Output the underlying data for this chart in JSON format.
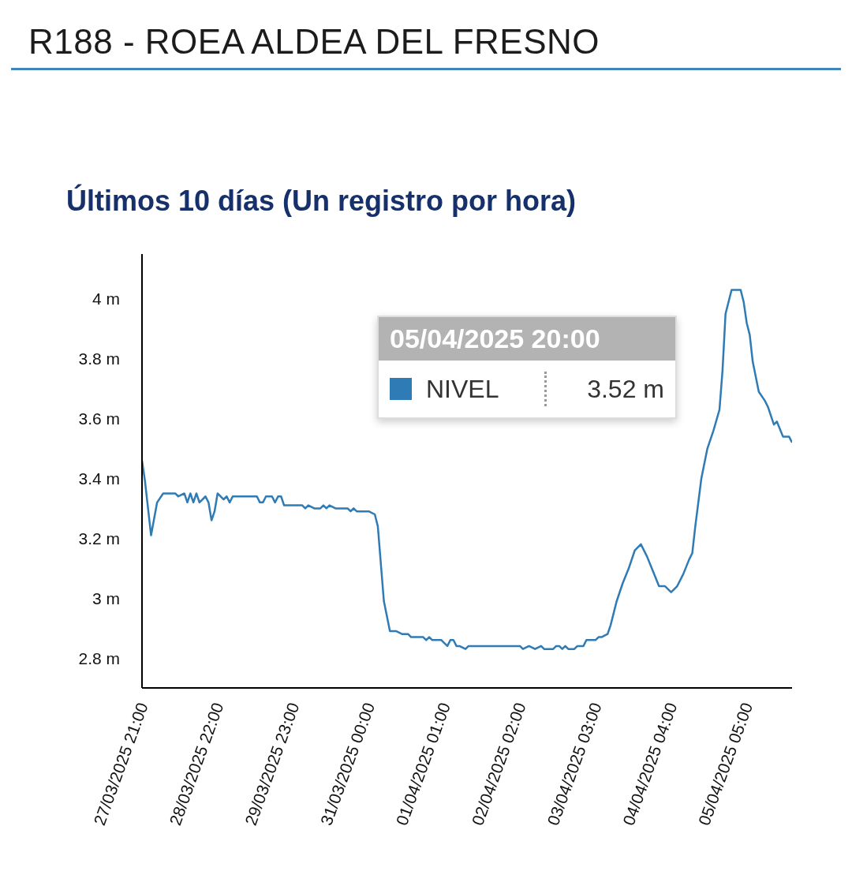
{
  "chart_data": {
    "type": "line",
    "title": "R188 - ROEA ALDEA DEL FRESNO",
    "subtitle": "Últimos 10 días (Un registro por hora)",
    "annotations": [
      "05/04/2025 20:00",
      "3.52 m"
    ],
    "legend": "top right",
    "marker": "none",
    "xlim": [
      "2025-03-27T21:00",
      "2025-04-05T20:00"
    ],
    "xticks": [
      {
        "value": "2025-03-27T21:00",
        "label": "27/03/2025 21:00"
      },
      {
        "value": "2025-03-28T22:00",
        "label": "28/03/2025 22:00"
      },
      {
        "value": "2025-03-29T23:00",
        "label": "29/03/2025 23:00"
      },
      {
        "value": "2025-03-31T00:00",
        "label": "31/03/2025 00:00"
      },
      {
        "value": "2025-04-01T01:00",
        "label": "01/04/2025 01:00"
      },
      {
        "value": "2025-04-02T02:00",
        "label": "02/04/2025 02:00"
      },
      {
        "value": "2025-04-03T03:00",
        "label": "03/04/2025 03:00"
      },
      {
        "value": "2025-04-04T04:00",
        "label": "04/04/2025 04:00"
      },
      {
        "value": "2025-04-05T05:00",
        "label": "05/04/2025 05:00"
      }
    ],
    "ylim": [
      2.7,
      4.15
    ],
    "yticks": [
      {
        "value": 2.8,
        "label": "2.8 m"
      },
      {
        "value": 3,
        "label": "3 m"
      },
      {
        "value": 3.2,
        "label": "3.2 m"
      },
      {
        "value": 3.4,
        "label": "3.4 m"
      },
      {
        "value": 3.6,
        "label": "3.6 m"
      },
      {
        "value": 3.8,
        "label": "3.8 m"
      },
      {
        "value": 4,
        "label": "4 m"
      }
    ],
    "x": [
      "2025-03-27T21:00",
      "2025-03-27T22:00",
      "2025-03-28T00:00",
      "2025-03-28T02:00",
      "2025-03-28T04:00",
      "2025-03-28T08:00",
      "2025-03-28T09:00",
      "2025-03-28T11:00",
      "2025-03-28T12:00",
      "2025-03-28T13:00",
      "2025-03-28T14:00",
      "2025-03-28T15:00",
      "2025-03-28T16:00",
      "2025-03-28T18:00",
      "2025-03-28T19:00",
      "2025-03-28T20:00",
      "2025-03-28T21:00",
      "2025-03-28T22:00",
      "2025-03-29T00:00",
      "2025-03-29T01:00",
      "2025-03-29T02:00",
      "2025-03-29T03:00",
      "2025-03-29T11:00",
      "2025-03-29T12:00",
      "2025-03-29T13:00",
      "2025-03-29T14:00",
      "2025-03-29T16:00",
      "2025-03-29T17:00",
      "2025-03-29T18:00",
      "2025-03-29T19:00",
      "2025-03-29T20:00",
      "2025-03-30T02:00",
      "2025-03-30T03:00",
      "2025-03-30T04:00",
      "2025-03-30T06:00",
      "2025-03-30T08:00",
      "2025-03-30T09:00",
      "2025-03-30T10:00",
      "2025-03-30T11:00",
      "2025-03-30T13:00",
      "2025-03-30T17:00",
      "2025-03-30T18:00",
      "2025-03-30T19:00",
      "2025-03-30T20:00",
      "2025-03-31T00:00",
      "2025-03-31T02:00",
      "2025-03-31T03:00",
      "2025-03-31T05:00",
      "2025-03-31T07:00",
      "2025-03-31T09:00",
      "2025-03-31T11:00",
      "2025-03-31T13:00",
      "2025-03-31T14:00",
      "2025-03-31T18:00",
      "2025-03-31T19:00",
      "2025-03-31T20:00",
      "2025-03-31T21:00",
      "2025-04-01T00:00",
      "2025-04-01T02:00",
      "2025-04-01T03:00",
      "2025-04-01T04:00",
      "2025-04-01T05:00",
      "2025-04-01T06:00",
      "2025-04-01T08:00",
      "2025-04-01T09:00",
      "2025-04-02T02:00",
      "2025-04-02T03:00",
      "2025-04-02T05:00",
      "2025-04-02T07:00",
      "2025-04-02T09:00",
      "2025-04-02T10:00",
      "2025-04-02T13:00",
      "2025-04-02T14:00",
      "2025-04-02T15:00",
      "2025-04-02T16:00",
      "2025-04-02T17:00",
      "2025-04-02T18:00",
      "2025-04-02T20:00",
      "2025-04-02T21:00",
      "2025-04-02T23:00",
      "2025-04-03T00:00",
      "2025-04-03T03:00",
      "2025-04-03T04:00",
      "2025-04-03T05:00",
      "2025-04-03T07:00",
      "2025-04-03T08:00",
      "2025-04-03T09:00",
      "2025-04-03T10:00",
      "2025-04-03T12:00",
      "2025-04-03T14:00",
      "2025-04-03T16:00",
      "2025-04-03T18:00",
      "2025-04-03T20:00",
      "2025-04-03T22:00",
      "2025-04-04T00:00",
      "2025-04-04T02:00",
      "2025-04-04T04:00",
      "2025-04-04T06:00",
      "2025-04-04T08:00",
      "2025-04-04T10:00",
      "2025-04-04T11:00",
      "2025-04-04T12:00",
      "2025-04-04T14:00",
      "2025-04-04T16:00",
      "2025-04-04T18:00",
      "2025-04-04T20:00",
      "2025-04-04T21:00",
      "2025-04-04T22:00",
      "2025-04-05T00:00",
      "2025-04-05T03:00",
      "2025-04-05T04:00",
      "2025-04-05T05:00",
      "2025-04-05T06:00",
      "2025-04-05T07:00",
      "2025-04-05T09:00",
      "2025-04-05T11:00",
      "2025-04-05T12:00",
      "2025-04-05T13:00",
      "2025-04-05T14:00",
      "2025-04-05T15:00",
      "2025-04-05T17:00",
      "2025-04-05T19:00",
      "2025-04-05T20:00"
    ],
    "series": [
      {
        "name": "NIVEL",
        "color": "#2f7bb5",
        "values": [
          3.46,
          3.39,
          3.21,
          3.32,
          3.35,
          3.35,
          3.34,
          3.35,
          3.32,
          3.35,
          3.32,
          3.35,
          3.32,
          3.34,
          3.32,
          3.26,
          3.29,
          3.35,
          3.33,
          3.34,
          3.32,
          3.34,
          3.34,
          3.32,
          3.32,
          3.34,
          3.34,
          3.32,
          3.34,
          3.34,
          3.31,
          3.31,
          3.3,
          3.31,
          3.3,
          3.3,
          3.31,
          3.3,
          3.31,
          3.3,
          3.3,
          3.29,
          3.3,
          3.29,
          3.29,
          3.28,
          3.24,
          2.99,
          2.89,
          2.89,
          2.88,
          2.88,
          2.87,
          2.87,
          2.86,
          2.87,
          2.86,
          2.86,
          2.84,
          2.86,
          2.86,
          2.84,
          2.84,
          2.83,
          2.84,
          2.84,
          2.83,
          2.84,
          2.83,
          2.84,
          2.83,
          2.83,
          2.84,
          2.84,
          2.83,
          2.84,
          2.83,
          2.83,
          2.84,
          2.84,
          2.86,
          2.86,
          2.87,
          2.87,
          2.88,
          2.91,
          2.95,
          2.99,
          3.05,
          3.1,
          3.16,
          3.18,
          3.14,
          3.09,
          3.04,
          3.04,
          3.02,
          3.04,
          3.08,
          3.13,
          3.15,
          3.24,
          3.4,
          3.5,
          3.56,
          3.63,
          3.76,
          3.95,
          4.03,
          4.03,
          3.99,
          3.92,
          3.88,
          3.79,
          3.69,
          3.66,
          3.64,
          3.61,
          3.58,
          3.59,
          3.54,
          3.54,
          3.52
        ]
      }
    ]
  }
}
